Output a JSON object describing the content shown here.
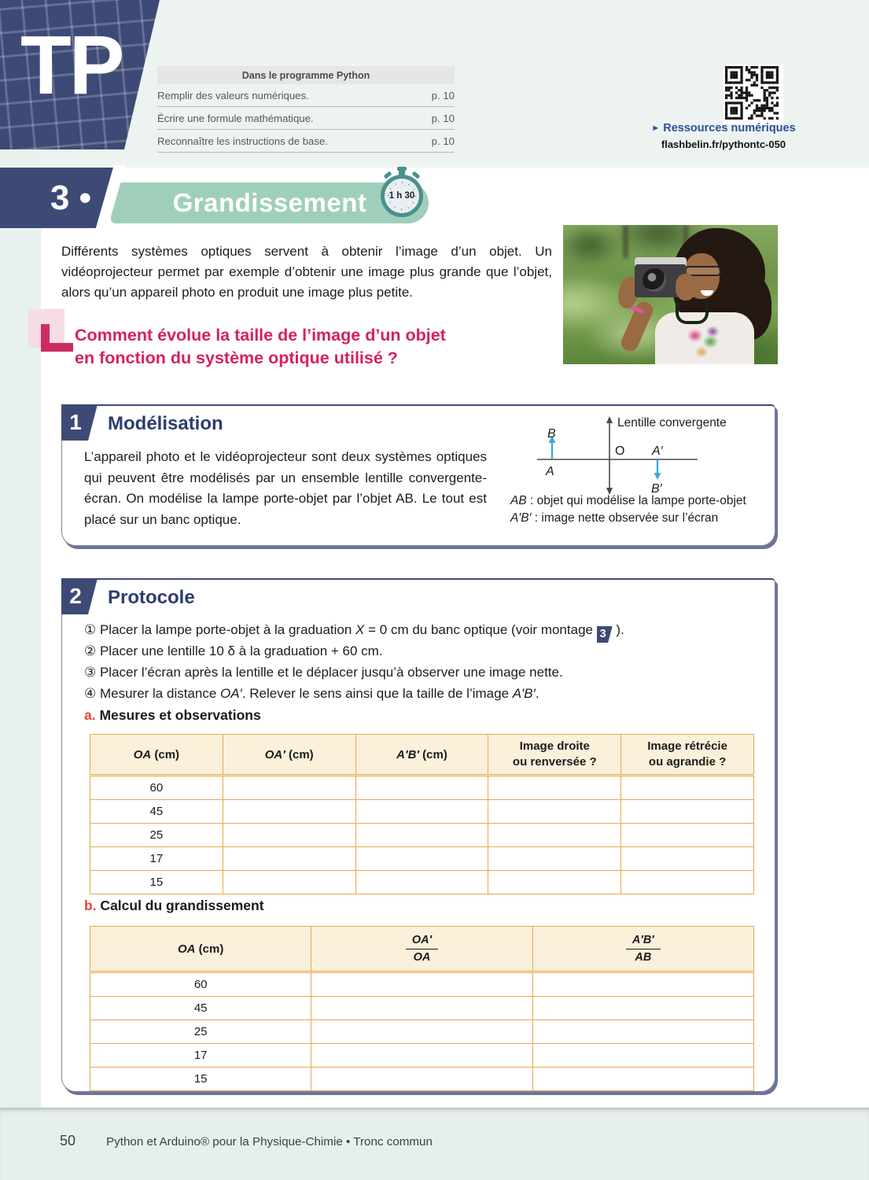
{
  "colors": {
    "navy": "#3E4A76",
    "banner_green": "#9FCFBA",
    "timer_teal": "#47918E",
    "question_pink": "#D6205F",
    "sub_letter_red": "#E04A33",
    "table_border_orange": "#E8A94F",
    "table_header_cream": "#FBF0DA",
    "footer_band_green": "#E7EFED",
    "resources_blue": "#2D4F9E",
    "arrow_blue": "#3FA9DC"
  },
  "tp_badge": "TP",
  "program_box": {
    "title": "Dans le programme Python",
    "rows": [
      {
        "label": "Remplir des valeurs numériques.",
        "page": "p. 10"
      },
      {
        "label": "Écrire une formule mathématique.",
        "page": "p. 10"
      },
      {
        "label": "Reconnaître les instructions de base.",
        "page": "p. 10"
      }
    ]
  },
  "resources": {
    "arrow": "►",
    "label": "Ressources numériques",
    "url": "flashbelin.fr/pythontc-050"
  },
  "banner": {
    "number_label": "3 •",
    "title": "Grandissement",
    "duration": "1 h 30"
  },
  "intro": "Différents systèmes optiques servent à obtenir l’image d’un objet. Un vidéoprojecteur permet par exemple d’obtenir une image plus grande que l’objet, alors qu’un appareil photo en produit une image plus petite.",
  "question": {
    "line1": "Comment évolue la taille de l’image d’un objet",
    "line2": "en fonction du système optique utilisé ?"
  },
  "section1": {
    "num": "1",
    "title": "Modélisation",
    "body": "L’appareil photo et le vidéoprojecteur sont deux systèmes optiques qui peuvent être modélisés par un ensemble lentille convergente-écran. On modélise la lampe porte-objet par l’objet AB. Le tout est placé sur un banc optique.",
    "diagram": {
      "lens_label": "Lentille convergente",
      "B": "B",
      "A": "A",
      "O": "O",
      "A_prime": "A′",
      "B_prime": "B′",
      "caption1_var": "AB",
      "caption1_rest": " : objet qui modélise la lampe porte-objet",
      "caption2_var": "A′B′",
      "caption2_rest": " : image nette observée sur l’écran"
    }
  },
  "section2": {
    "num": "2",
    "title": "Protocole",
    "steps": {
      "s1a": "① Placer la lampe porte-objet à la graduation ",
      "s1var": "X",
      "s1b": " = 0 cm du banc optique (voir montage ",
      "s1badge": "3",
      "s1c": " ).",
      "s2": "② Placer une lentille 10 δ à la graduation + 60 cm.",
      "s3": "③ Placer l’écran après la lentille et le déplacer jusqu’à observer une image nette.",
      "s4a": "④ Mesurer la distance ",
      "s4var1": "OA′",
      "s4b": ". Relever le sens ainsi que la taille de l’image ",
      "s4var2": "A′B′",
      "s4c": "."
    },
    "sub_a": {
      "letter": "a.",
      "title": " Mesures et observations",
      "table": {
        "h1_var": "OA",
        "h1_rest": " (cm)",
        "h2_var": "OA′",
        "h2_rest": " (cm)",
        "h3_var": "A′B′",
        "h3_rest": " (cm)",
        "h4_line1": "Image droite",
        "h4_line2": "ou renversée ?",
        "h5_line1": "Image rétrécie",
        "h5_line2": "ou agrandie ?",
        "rows": [
          [
            "60",
            "",
            "",
            "",
            ""
          ],
          [
            "45",
            "",
            "",
            "",
            ""
          ],
          [
            "25",
            "",
            "",
            "",
            ""
          ],
          [
            "17",
            "",
            "",
            "",
            ""
          ],
          [
            "15",
            "",
            "",
            "",
            ""
          ]
        ]
      }
    },
    "sub_b": {
      "letter": "b.",
      "title": " Calcul du grandissement",
      "table": {
        "h1_var": "OA",
        "h1_rest": " (cm)",
        "h2_num": "OA′",
        "h2_den": "OA",
        "h3_num": "A′B′",
        "h3_den": "AB",
        "rows": [
          [
            "60",
            "",
            ""
          ],
          [
            "45",
            "",
            ""
          ],
          [
            "25",
            "",
            ""
          ],
          [
            "17",
            "",
            ""
          ],
          [
            "15",
            "",
            ""
          ]
        ]
      }
    }
  },
  "footer": {
    "page_number": "50",
    "text": "Python et Arduino® pour la Physique-Chimie • Tronc commun"
  }
}
